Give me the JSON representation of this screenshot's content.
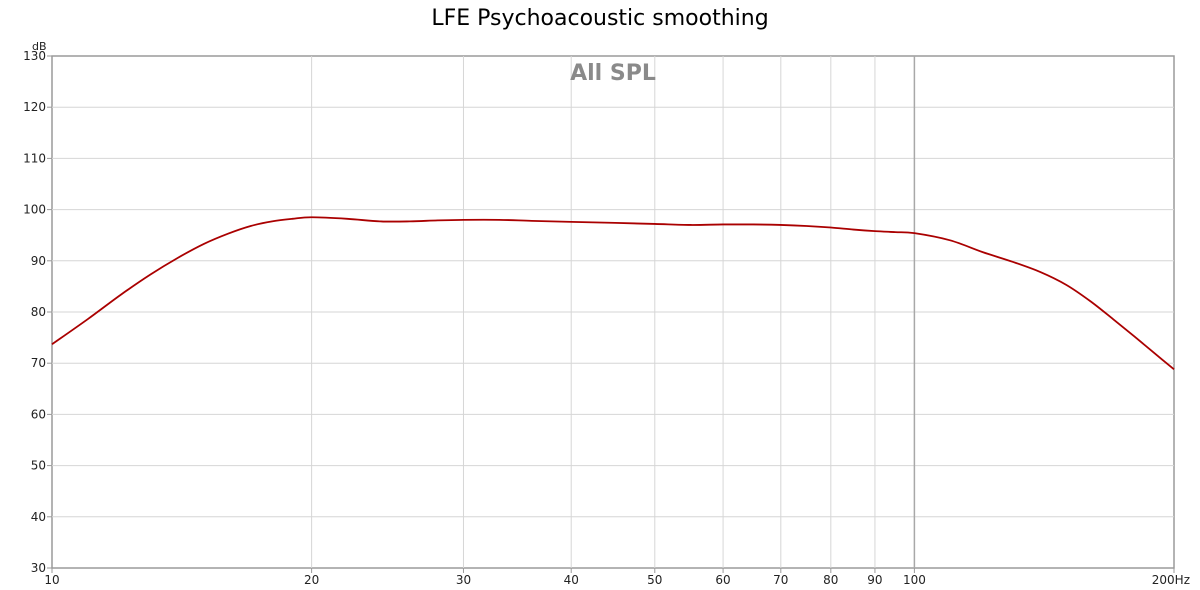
{
  "chart_data": {
    "type": "line",
    "title": "LFE Psychoacoustic smoothing",
    "overlay_label": "All SPL",
    "y_unit": "dB",
    "x_scale": "log",
    "xlim": [
      10,
      200
    ],
    "ylim": [
      30,
      130
    ],
    "x_ticks": [
      {
        "value": 10,
        "label": "10"
      },
      {
        "value": 20,
        "label": "20"
      },
      {
        "value": 30,
        "label": "30"
      },
      {
        "value": 40,
        "label": "40"
      },
      {
        "value": 50,
        "label": "50"
      },
      {
        "value": 60,
        "label": "60"
      },
      {
        "value": 70,
        "label": "70"
      },
      {
        "value": 80,
        "label": "80"
      },
      {
        "value": 90,
        "label": "90"
      },
      {
        "value": 100,
        "label": "100"
      },
      {
        "value": 200,
        "label": "200Hz"
      }
    ],
    "y_ticks": [
      {
        "value": 30,
        "label": "30"
      },
      {
        "value": 40,
        "label": "40"
      },
      {
        "value": 50,
        "label": "50"
      },
      {
        "value": 60,
        "label": "60"
      },
      {
        "value": 70,
        "label": "70"
      },
      {
        "value": 80,
        "label": "80"
      },
      {
        "value": 90,
        "label": "90"
      },
      {
        "value": 100,
        "label": "100"
      },
      {
        "value": 110,
        "label": "110"
      },
      {
        "value": 120,
        "label": "120"
      },
      {
        "value": 130,
        "label": "130"
      }
    ],
    "grid": true,
    "series": [
      {
        "color": "#aa0000",
        "x": [
          10,
          11,
          12,
          13,
          14,
          15,
          16,
          17,
          18,
          19,
          20,
          22,
          24,
          26,
          28,
          30,
          33,
          36,
          40,
          45,
          50,
          55,
          60,
          65,
          70,
          75,
          80,
          85,
          90,
          95,
          100,
          110,
          120,
          130,
          140,
          150,
          160,
          170,
          180,
          190,
          200
        ],
        "y": [
          73.7,
          78.6,
          83.3,
          87.3,
          90.6,
          93.3,
          95.3,
          96.8,
          97.7,
          98.2,
          98.5,
          98.2,
          97.7,
          97.7,
          97.9,
          98.0,
          98.0,
          97.8,
          97.6,
          97.4,
          97.2,
          97.0,
          97.1,
          97.1,
          97.0,
          96.8,
          96.5,
          96.1,
          95.8,
          95.6,
          95.4,
          94.0,
          91.7,
          89.8,
          87.8,
          85.3,
          82.1,
          78.6,
          75.2,
          71.9,
          68.8
        ]
      }
    ]
  }
}
